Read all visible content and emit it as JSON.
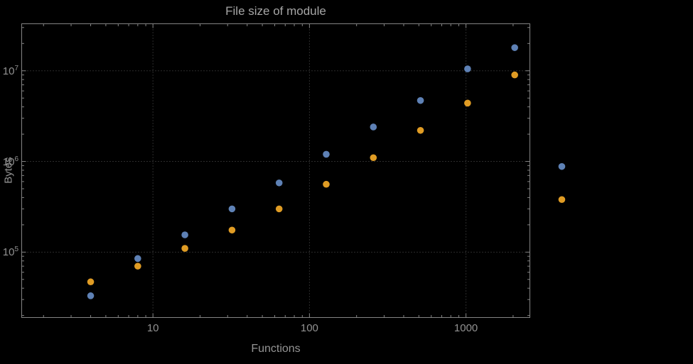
{
  "chart_data": {
    "type": "scatter",
    "title": "File size of module",
    "xlabel": "Functions",
    "ylabel": "Bytes",
    "x_scale": "log",
    "y_scale": "log",
    "grid": "dotted",
    "legend": "none",
    "x": [
      4,
      8,
      16,
      32,
      64,
      128,
      256,
      512,
      1024,
      2048,
      4096
    ],
    "series": [
      {
        "name": "blue",
        "color": "#5e81b5",
        "values": [
          33000,
          85000,
          155000,
          300000,
          580000,
          1200000,
          2400000,
          4700000,
          10500000,
          18000000,
          880000
        ]
      },
      {
        "name": "orange",
        "color": "#e09c24",
        "values": [
          47000,
          70000,
          110000,
          175000,
          300000,
          560000,
          1100000,
          2200000,
          4400000,
          9000000,
          380000
        ]
      }
    ],
    "x_ticks": [
      10,
      100,
      1000
    ],
    "y_ticks": [
      100000,
      1000000,
      10000000
    ],
    "xlim": [
      1.45,
      2560
    ],
    "ylim": [
      19000,
      33000000
    ],
    "background": "#000000",
    "frame_color": "#848484",
    "grid_color": "#575757",
    "label_color": "#919191",
    "point_radius": 4.8
  }
}
